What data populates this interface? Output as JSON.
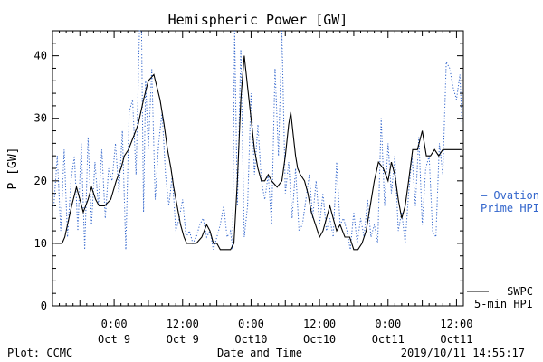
{
  "chart_data": {
    "type": "line",
    "title": "Hemispheric Power [GW]",
    "ylabel": "P [GW]",
    "xlabel": "Date and Time",
    "ylim": [
      0,
      44
    ],
    "xlim": [
      -9,
      51
    ],
    "yticks": [
      0,
      10,
      20,
      30,
      40
    ],
    "xticks": [
      {
        "x": 0,
        "top": "0:00",
        "bottom": "Oct 9"
      },
      {
        "x": 10,
        "top": "12:00",
        "bottom": "Oct 9"
      },
      {
        "x": 20,
        "top": "0:00",
        "bottom": "Oct10"
      },
      {
        "x": 30,
        "top": "12:00",
        "bottom": "Oct10"
      },
      {
        "x": 40,
        "top": "0:00",
        "bottom": "Oct11"
      },
      {
        "x": 50,
        "top": "12:00",
        "bottom": "Oct11"
      }
    ],
    "series": [
      {
        "name": "SWPC 5-min HPI",
        "label_lines": [
          "SWPC",
          "5-min HPI"
        ],
        "color": "#000000",
        "style": "solid",
        "x": [
          -8.6,
          -7.6,
          -7.2,
          -6.8,
          -6.2,
          -5.5,
          -5.0,
          -4.5,
          -3.8,
          -3.3,
          -2.7,
          -2.2,
          -1.4,
          -0.5,
          0.3,
          1.0,
          1.5,
          2.1,
          2.8,
          3.5,
          4.3,
          5.0,
          5.8,
          6.7,
          7.3,
          7.8,
          8.3,
          8.7,
          9.2,
          9.7,
          10.2,
          10.6,
          11.2,
          12.0,
          12.8,
          13.5,
          14.0,
          14.5,
          15.0,
          15.5,
          16.0,
          16.5,
          17.0,
          17.5,
          18.0,
          18.5,
          19.0,
          19.5,
          20.0,
          20.5,
          21.0,
          21.5,
          22.0,
          22.5,
          23.0,
          23.8,
          24.5,
          25.0,
          25.5,
          25.8,
          26.2,
          26.5,
          26.8,
          27.2,
          27.8,
          28.3,
          28.8,
          29.4,
          30.0,
          30.5,
          31.0,
          31.5,
          32.0,
          32.5,
          33.0,
          33.7,
          34.4,
          35.0,
          35.6,
          36.2,
          36.8,
          37.4,
          38.0,
          38.6,
          39.3,
          40.0,
          40.5,
          41.0,
          41.5,
          42.0,
          42.5,
          43.0,
          43.6,
          44.3,
          45.0,
          45.6,
          46.2,
          46.8,
          47.4,
          48.0,
          48.6,
          49.2,
          49.8,
          50.3,
          50.8
        ],
        "y": [
          10,
          10,
          11,
          13,
          16,
          19,
          17,
          15,
          17,
          19,
          17,
          16,
          16,
          17,
          20,
          22,
          24,
          25,
          27,
          29,
          33,
          36,
          37,
          33,
          29,
          25,
          22,
          19,
          16,
          13,
          11,
          10,
          10,
          10,
          11,
          13,
          12,
          10,
          10,
          9,
          9,
          9,
          9,
          10,
          20,
          33,
          40,
          35,
          30,
          25,
          22,
          20,
          20,
          21,
          20,
          19,
          20,
          24,
          29,
          31,
          27,
          24,
          22,
          21,
          20,
          18,
          15,
          13,
          11,
          12,
          14,
          16,
          14,
          12,
          13,
          11,
          11,
          9,
          9,
          10,
          12,
          16,
          20,
          23,
          22,
          20,
          23,
          21,
          17,
          14,
          16,
          20,
          25,
          25,
          28,
          24,
          24,
          25,
          24,
          25,
          25,
          25,
          25,
          25,
          25
        ]
      },
      {
        "name": "Ovation Prime HPI",
        "label_lines": [
          "— Ovation",
          "Prime HPI"
        ],
        "color": "#3366cc",
        "style": "dotted",
        "x": [
          -8.8,
          -8.3,
          -7.8,
          -7.3,
          -6.8,
          -6.3,
          -5.8,
          -5.3,
          -4.8,
          -4.3,
          -3.8,
          -3.3,
          -2.8,
          -2.3,
          -1.8,
          -1.3,
          -0.8,
          -0.3,
          0.2,
          0.7,
          1.2,
          1.7,
          2.2,
          2.7,
          3.2,
          3.7,
          4.0,
          4.3,
          4.6,
          5.0,
          5.5,
          6.0,
          6.5,
          7.0,
          7.5,
          8.0,
          8.5,
          9.0,
          9.5,
          10.0,
          10.5,
          11.0,
          11.5,
          12.0,
          12.5,
          13.0,
          13.5,
          14.0,
          14.5,
          15.0,
          15.5,
          16.0,
          16.5,
          17.0,
          17.3,
          17.6,
          18.0,
          18.5,
          19.0,
          19.5,
          20.0,
          20.5,
          21.0,
          21.5,
          22.0,
          22.5,
          23.0,
          23.5,
          24.0,
          24.5,
          25.0,
          25.5,
          26.0,
          26.5,
          27.0,
          27.5,
          28.0,
          28.5,
          29.0,
          29.5,
          30.0,
          30.5,
          31.0,
          31.5,
          32.0,
          32.5,
          33.0,
          33.5,
          34.0,
          34.5,
          35.0,
          35.5,
          36.0,
          36.5,
          37.0,
          37.5,
          38.0,
          38.5,
          39.0,
          39.5,
          40.0,
          40.5,
          41.0,
          41.5,
          42.0,
          42.5,
          43.0,
          43.5,
          44.0,
          44.5,
          45.0,
          45.5,
          46.0,
          46.5,
          47.0,
          47.5,
          48.0,
          48.5,
          49.0,
          49.5,
          50.0,
          50.5,
          50.8
        ],
        "y": [
          16,
          24,
          12,
          25,
          11,
          20,
          24,
          12,
          26,
          9,
          27,
          13,
          23,
          16,
          25,
          14,
          22,
          20,
          26,
          18,
          28,
          9,
          31,
          33,
          21,
          44,
          44,
          15,
          36,
          25,
          38,
          17,
          26,
          31,
          21,
          16,
          21,
          12,
          14,
          17,
          11,
          12,
          10,
          11,
          13,
          14,
          11,
          12,
          9,
          11,
          13,
          16,
          11,
          12,
          9,
          44,
          16,
          41,
          11,
          16,
          34,
          21,
          29,
          20,
          17,
          21,
          13,
          38,
          24,
          44,
          18,
          23,
          14,
          22,
          12,
          13,
          17,
          21,
          14,
          20,
          13,
          18,
          12,
          14,
          11,
          23,
          13,
          14,
          12,
          9,
          15,
          10,
          14,
          11,
          17,
          11,
          13,
          10,
          30,
          16,
          26,
          18,
          24,
          12,
          15,
          10,
          18,
          24,
          16,
          27,
          13,
          22,
          24,
          12,
          11,
          26,
          21,
          39,
          38,
          35,
          33,
          37,
          29
        ]
      }
    ],
    "footer_left": "Plot: CCMC",
    "footer_right": "2019/10/11 14:55:17"
  }
}
